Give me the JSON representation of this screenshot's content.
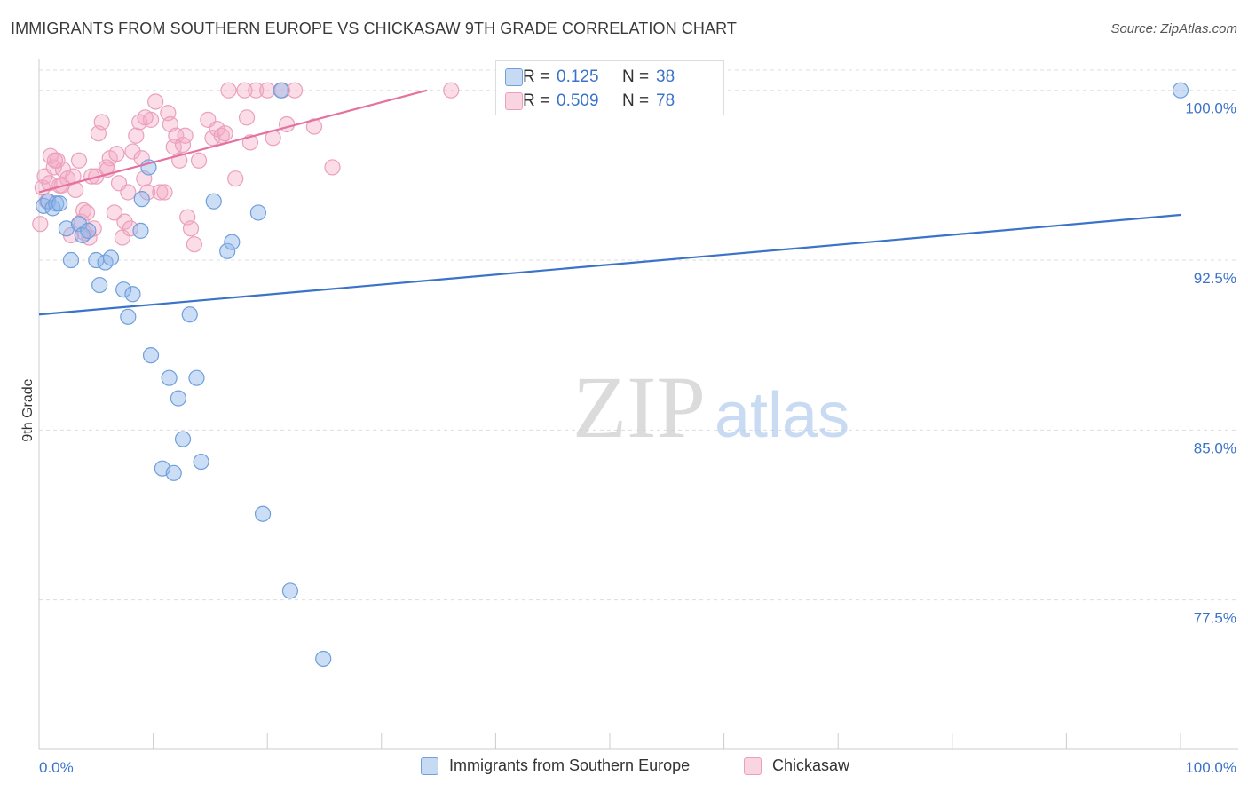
{
  "title": "IMMIGRANTS FROM SOUTHERN EUROPE VS CHICKASAW 9TH GRADE CORRELATION CHART",
  "source": "Source: ZipAtlas.com",
  "watermark": {
    "zip": "ZIP",
    "atlas": "atlas"
  },
  "colors": {
    "blue": "#3b73c8",
    "blue_fill": "rgba(143,181,232,0.45)",
    "blue_stroke": "#6f9fdc",
    "pink": "#e5729e",
    "pink_fill": "rgba(244,170,196,0.40)",
    "pink_stroke": "#eaa0bd",
    "grid": "#dddddd",
    "axis_text": "#3b73c8"
  },
  "stats": [
    {
      "series": "Immigrants from Southern Europe",
      "r_label": "R =",
      "r": "0.125",
      "n_label": "N =",
      "n": "38"
    },
    {
      "series": "Chickasaw",
      "r_label": "R =",
      "r": "0.509",
      "n_label": "N =",
      "n": "78"
    }
  ],
  "legend": [
    "Immigrants from Southern Europe",
    "Chickasaw"
  ],
  "chart_data": {
    "type": "scatter",
    "title": "IMMIGRANTS FROM SOUTHERN EUROPE VS CHICKASAW 9TH GRADE CORRELATION CHART",
    "xlabel": "",
    "ylabel": "9th Grade",
    "xlim": [
      0,
      100
    ],
    "ylim": [
      70.9,
      101.4
    ],
    "x_tick_labels": [
      "0.0%",
      "100.0%"
    ],
    "y_ticks": [
      77.5,
      85.0,
      92.5,
      100.0
    ],
    "y_tick_labels": [
      "77.5%",
      "85.0%",
      "92.5%",
      "100.0%"
    ],
    "series": [
      {
        "name": "Immigrants from Southern Europe",
        "trend": {
          "x": [
            0,
            100
          ],
          "y": [
            90.1,
            94.5
          ]
        },
        "points": [
          [
            0.4,
            94.9
          ],
          [
            0.8,
            95.1
          ],
          [
            1.2,
            94.8
          ],
          [
            1.5,
            95.0
          ],
          [
            1.8,
            95.0
          ],
          [
            2.4,
            93.9
          ],
          [
            2.8,
            92.5
          ],
          [
            3.5,
            94.1
          ],
          [
            3.8,
            93.6
          ],
          [
            4.3,
            93.8
          ],
          [
            5.0,
            92.5
          ],
          [
            5.3,
            91.4
          ],
          [
            5.8,
            92.4
          ],
          [
            6.3,
            92.6
          ],
          [
            7.4,
            91.2
          ],
          [
            7.8,
            90.0
          ],
          [
            8.2,
            91.0
          ],
          [
            8.9,
            93.8
          ],
          [
            9.0,
            95.2
          ],
          [
            9.6,
            96.6
          ],
          [
            9.8,
            88.3
          ],
          [
            10.8,
            83.3
          ],
          [
            11.4,
            87.3
          ],
          [
            11.8,
            83.1
          ],
          [
            12.2,
            86.4
          ],
          [
            12.6,
            84.6
          ],
          [
            13.2,
            90.1
          ],
          [
            13.8,
            87.3
          ],
          [
            14.2,
            83.6
          ],
          [
            15.3,
            95.1
          ],
          [
            16.5,
            92.9
          ],
          [
            16.9,
            93.3
          ],
          [
            19.2,
            94.6
          ],
          [
            19.6,
            81.3
          ],
          [
            21.2,
            100.0
          ],
          [
            22.0,
            77.9
          ],
          [
            24.9,
            74.9
          ],
          [
            100.0,
            100.0
          ]
        ]
      },
      {
        "name": "Chickasaw",
        "trend": {
          "x": [
            0,
            34
          ],
          "y": [
            95.5,
            100.0
          ]
        },
        "points": [
          [
            0.1,
            94.1
          ],
          [
            0.3,
            95.7
          ],
          [
            0.5,
            96.2
          ],
          [
            0.9,
            95.9
          ],
          [
            1.0,
            97.1
          ],
          [
            1.3,
            96.6
          ],
          [
            1.6,
            96.9
          ],
          [
            1.8,
            95.8
          ],
          [
            2.1,
            96.5
          ],
          [
            2.5,
            96.1
          ],
          [
            2.8,
            93.6
          ],
          [
            3.2,
            95.6
          ],
          [
            3.5,
            96.9
          ],
          [
            3.7,
            94.2
          ],
          [
            3.9,
            94.7
          ],
          [
            4.0,
            93.7
          ],
          [
            4.2,
            94.6
          ],
          [
            4.4,
            93.5
          ],
          [
            4.6,
            96.2
          ],
          [
            4.8,
            93.9
          ],
          [
            5.0,
            96.2
          ],
          [
            5.2,
            98.1
          ],
          [
            5.5,
            98.6
          ],
          [
            5.9,
            96.6
          ],
          [
            6.2,
            97.0
          ],
          [
            6.6,
            94.6
          ],
          [
            6.8,
            97.2
          ],
          [
            7.0,
            95.9
          ],
          [
            7.3,
            93.5
          ],
          [
            7.5,
            94.2
          ],
          [
            7.8,
            95.5
          ],
          [
            8.0,
            93.9
          ],
          [
            8.2,
            97.3
          ],
          [
            8.5,
            98.0
          ],
          [
            8.8,
            98.6
          ],
          [
            9.0,
            97.0
          ],
          [
            9.2,
            96.1
          ],
          [
            9.5,
            95.5
          ],
          [
            9.8,
            98.7
          ],
          [
            10.2,
            99.5
          ],
          [
            10.6,
            95.5
          ],
          [
            11.0,
            95.5
          ],
          [
            11.3,
            99.0
          ],
          [
            11.5,
            98.5
          ],
          [
            11.8,
            97.5
          ],
          [
            12.0,
            98.0
          ],
          [
            12.3,
            96.9
          ],
          [
            12.6,
            97.6
          ],
          [
            13.0,
            94.4
          ],
          [
            13.3,
            93.9
          ],
          [
            13.6,
            93.2
          ],
          [
            14.0,
            96.9
          ],
          [
            14.8,
            98.7
          ],
          [
            15.2,
            97.9
          ],
          [
            15.6,
            98.3
          ],
          [
            16.0,
            98.0
          ],
          [
            16.6,
            100.0
          ],
          [
            17.2,
            96.1
          ],
          [
            18.0,
            100.0
          ],
          [
            18.5,
            97.7
          ],
          [
            19.0,
            100.0
          ],
          [
            20.0,
            100.0
          ],
          [
            20.5,
            97.9
          ],
          [
            21.3,
            100.0
          ],
          [
            21.7,
            98.5
          ],
          [
            22.4,
            100.0
          ],
          [
            24.1,
            98.4
          ],
          [
            25.7,
            96.6
          ],
          [
            1.4,
            96.9
          ],
          [
            2.0,
            95.8
          ],
          [
            3.0,
            96.2
          ],
          [
            6.0,
            96.5
          ],
          [
            0.7,
            95.1
          ],
          [
            9.3,
            98.8
          ],
          [
            12.8,
            98.0
          ],
          [
            16.3,
            98.1
          ],
          [
            18.2,
            98.8
          ],
          [
            36.1,
            100.0
          ]
        ]
      }
    ]
  }
}
